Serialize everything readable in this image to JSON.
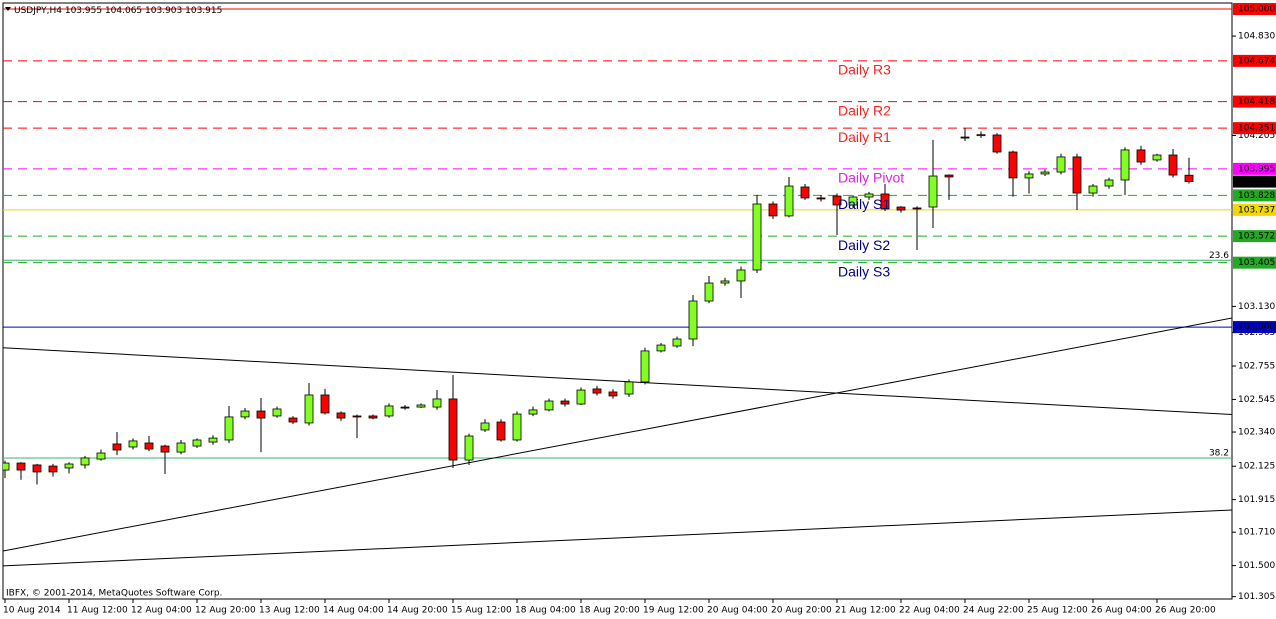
{
  "chart_data": {
    "type": "candlestick",
    "title": "USDJPY,H4",
    "copyright": "IBFX, © 2001-2014, MetaQuotes Software Corp.",
    "categories": [
      "10 Aug 2014",
      null,
      null,
      null,
      "11 Aug 12:00",
      null,
      null,
      null,
      "12 Aug 04:00",
      null,
      null,
      null,
      "12 Aug 20:00",
      null,
      null,
      null,
      "13 Aug 12:00",
      null,
      null,
      null,
      "14 Aug 04:00",
      null,
      null,
      null,
      "14 Aug 20:00",
      null,
      null,
      null,
      "15 Aug 12:00",
      null,
      null,
      null,
      "18 Aug 04:00",
      null,
      null,
      null,
      "18 Aug 20:00",
      null,
      null,
      null,
      "19 Aug 12:00",
      null,
      null,
      null,
      "20 Aug 04:00",
      null,
      null,
      null,
      "20 Aug 20:00",
      null,
      null,
      null,
      "21 Aug 12:00",
      null,
      null,
      null,
      "22 Aug 04:00",
      null,
      null,
      null,
      "24 Aug 22:00",
      null,
      null,
      null,
      "25 Aug 12:00",
      null,
      null,
      null,
      "26 Aug 04:00",
      null,
      null,
      null,
      "26 Aug 20:00",
      null,
      null
    ],
    "candles": {
      "open": [
        102.101,
        102.145,
        102.133,
        102.126,
        102.114,
        102.133,
        102.17,
        102.265,
        102.246,
        102.271,
        102.252,
        102.214,
        102.252,
        102.277,
        102.29,
        102.435,
        102.472,
        102.441,
        102.428,
        102.397,
        102.573,
        102.46,
        102.441,
        102.441,
        102.441,
        102.497,
        102.497,
        102.497,
        102.548,
        102.164,
        102.353,
        102.403,
        102.29,
        102.453,
        102.479,
        102.535,
        102.516,
        102.611,
        102.592,
        102.579,
        102.655,
        102.85,
        102.881,
        102.925,
        103.164,
        103.277,
        103.29,
        103.359,
        103.774,
        103.699,
        103.881,
        103.812,
        103.824,
        103.768,
        103.818,
        103.837,
        103.755,
        103.749,
        103.755,
        103.956,
        104.195,
        104.208,
        104.208,
        104.101,
        103.938,
        103.963,
        103.975,
        104.07,
        103.843,
        103.887,
        103.925,
        104.114,
        104.051,
        104.082,
        103.955
      ],
      "high": [
        102.16,
        102.15,
        102.14,
        102.14,
        102.15,
        102.19,
        102.23,
        102.34,
        102.3,
        102.315,
        102.26,
        102.29,
        102.3,
        102.32,
        102.504,
        102.49,
        102.554,
        102.5,
        102.44,
        102.648,
        102.611,
        102.47,
        102.45,
        102.45,
        102.52,
        102.51,
        102.52,
        102.604,
        102.699,
        102.33,
        102.42,
        102.42,
        102.47,
        102.5,
        102.55,
        102.55,
        102.62,
        102.63,
        102.61,
        102.67,
        102.87,
        102.9,
        102.94,
        103.202,
        103.321,
        103.31,
        103.38,
        103.831,
        103.79,
        103.944,
        103.9,
        103.83,
        103.84,
        103.83,
        103.85,
        103.9,
        103.76,
        103.76,
        104.177,
        103.96,
        104.252,
        104.23,
        104.22,
        104.11,
        103.98,
        103.99,
        104.09,
        104.09,
        103.9,
        103.94,
        104.13,
        104.14,
        104.09,
        104.12,
        104.065
      ],
      "low": [
        102.05,
        102.04,
        102.01,
        102.06,
        102.08,
        102.11,
        102.16,
        102.195,
        102.23,
        102.22,
        102.076,
        102.2,
        102.24,
        102.26,
        102.27,
        102.42,
        102.214,
        102.43,
        102.39,
        102.38,
        102.45,
        102.41,
        102.302,
        102.42,
        102.43,
        102.48,
        102.49,
        102.48,
        102.114,
        102.133,
        102.34,
        102.28,
        102.28,
        102.44,
        102.47,
        102.5,
        102.51,
        102.57,
        102.55,
        102.56,
        102.64,
        102.84,
        102.87,
        102.88,
        103.15,
        103.26,
        103.183,
        103.34,
        103.68,
        103.69,
        103.8,
        103.79,
        103.579,
        103.75,
        103.8,
        103.73,
        103.72,
        103.485,
        103.623,
        103.8,
        104.17,
        104.19,
        104.09,
        103.82,
        103.84,
        103.95,
        103.96,
        103.736,
        103.82,
        103.87,
        103.83,
        104.02,
        104.04,
        103.94,
        103.903
      ],
      "close": [
        102.145,
        102.101,
        102.089,
        102.089,
        102.139,
        102.177,
        102.208,
        102.227,
        102.284,
        102.233,
        102.214,
        102.271,
        102.29,
        102.302,
        102.435,
        102.472,
        102.428,
        102.485,
        102.403,
        102.573,
        102.46,
        102.428,
        102.435,
        102.428,
        102.504,
        102.494,
        102.51,
        102.548,
        102.164,
        102.315,
        102.397,
        102.29,
        102.453,
        102.479,
        102.535,
        102.516,
        102.604,
        102.585,
        102.567,
        102.655,
        102.85,
        102.887,
        102.925,
        103.164,
        103.277,
        103.29,
        103.359,
        103.774,
        103.699,
        103.887,
        103.812,
        103.806,
        103.768,
        103.818,
        103.837,
        103.743,
        103.736,
        103.747,
        103.95,
        103.944,
        104.193,
        104.21,
        104.101,
        103.938,
        103.963,
        103.975,
        104.07,
        103.843,
        103.887,
        103.925,
        104.114,
        104.038,
        104.082,
        103.956,
        103.915
      ]
    },
    "up_color": "#80ff20",
    "down_color": "#ff0000",
    "ylim": [
      101.29,
      105.038
    ],
    "yticks": [
      {
        "value": 104.83,
        "label": "104.830"
      },
      104.205,
      {
        "value": 103.13,
        "label": "103.130"
      },
      102.965,
      102.755,
      102.545,
      {
        "value": 102.34,
        "label": "102.340"
      },
      102.125,
      101.915,
      {
        "value": 101.71,
        "label": "101.710"
      },
      {
        "value": 101.5,
        "label": "101.500"
      },
      101.305
    ],
    "levels": [
      {
        "price": 105,
        "price_label": "105.000",
        "color": "#ff0000",
        "style": "solid"
      },
      {
        "name": "Daily R3",
        "price": 104.674,
        "color": "#ff0000",
        "label_color": "#ff2020",
        "style": "dashed"
      },
      {
        "name": "Daily R2",
        "price": 104.418,
        "color": "#ff0000",
        "label_color": "#ff2020",
        "style": "dashed"
      },
      {
        "name": "Daily R1",
        "price": 104.251,
        "color": "#ff0000",
        "label_color": "#ff2020",
        "style": "dashed"
      },
      {
        "name": "Daily Pivot",
        "price": 103.995,
        "color": "#ff00ff",
        "label_color": "#e020e0",
        "style": "dashed"
      },
      {
        "name": "Daily S1",
        "price": 103.828,
        "color": "#22aa22",
        "label_color": "#000080",
        "style": "dashed"
      },
      {
        "price": 103.737,
        "color": "#f0d800",
        "style": "solid"
      },
      {
        "name": "Daily S2",
        "price": 103.572,
        "color": "#22aa22",
        "label_color": "#000080",
        "style": "dashed"
      },
      {
        "name": "Daily S3",
        "price": 103.405,
        "color": "#22aa22",
        "label_color": "#000080",
        "style": "dashed"
      },
      {
        "price": 103,
        "price_label": "103.000",
        "color": "#0000c0",
        "style": "solid"
      }
    ],
    "fib_levels": [
      {
        "label": "23.6",
        "price": 103.42,
        "color": "#3cb371"
      },
      {
        "label": "38.2",
        "price": 102.177,
        "color": "#3cb371"
      }
    ],
    "trendlines": [
      {
        "x": [
          -0.125,
          76.7
        ],
        "y": [
          102.87,
          102.45
        ],
        "color": "#000000"
      },
      {
        "x": [
          -0.125,
          76.7
        ],
        "y": [
          101.592,
          103.057
        ],
        "color": "#000000"
      },
      {
        "x": [
          -0.125,
          76.7
        ],
        "y": [
          101.498,
          101.85
        ],
        "color": "#000000"
      }
    ],
    "current_color": "#000000"
  }
}
